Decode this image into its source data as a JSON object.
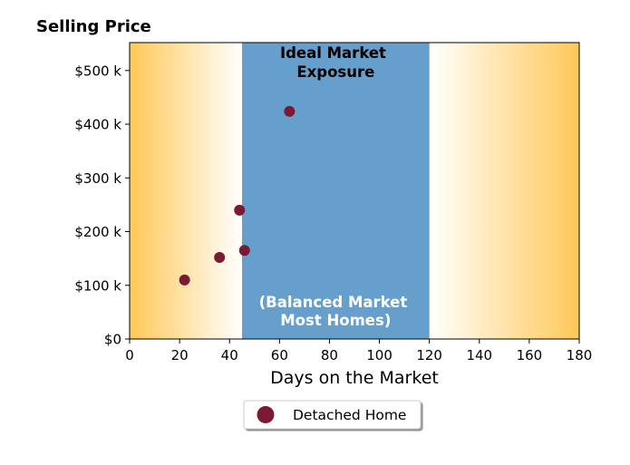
{
  "chart_data": {
    "type": "scatter",
    "title": "Selling Price",
    "xlabel": "Days on the Market",
    "ylabel": "",
    "xlim": [
      0,
      180
    ],
    "ylim": [
      0,
      552000
    ],
    "x_ticks": [
      0,
      20,
      40,
      60,
      80,
      100,
      120,
      140,
      160,
      180
    ],
    "x_tick_labels": [
      "0",
      "20",
      "40",
      "60",
      "80",
      "100",
      "120",
      "140",
      "160",
      "180"
    ],
    "y_ticks": [
      0,
      100000,
      200000,
      300000,
      400000,
      500000
    ],
    "y_tick_labels": [
      "$0",
      "$100 k",
      "$200 k",
      "$300 k",
      "$400 k",
      "$500 k"
    ],
    "grid": false,
    "band": {
      "x_start": 45,
      "x_end": 120,
      "color": "#679fcc",
      "label_top": [
        "Ideal Market",
        "Exposure"
      ],
      "label_bottom": [
        "(Balanced Market",
        "Most Homes)"
      ]
    },
    "background_gradient": {
      "edge_color": "#ffc857",
      "center_color": "#ffffff"
    },
    "series": [
      {
        "name": "Detached Home",
        "color": "#7a1a33",
        "points": [
          {
            "x": 22,
            "y": 110000
          },
          {
            "x": 36,
            "y": 152000
          },
          {
            "x": 44,
            "y": 240000
          },
          {
            "x": 46,
            "y": 165000
          },
          {
            "x": 64,
            "y": 424000
          }
        ]
      }
    ],
    "legend": {
      "position": "bottom-center"
    }
  }
}
